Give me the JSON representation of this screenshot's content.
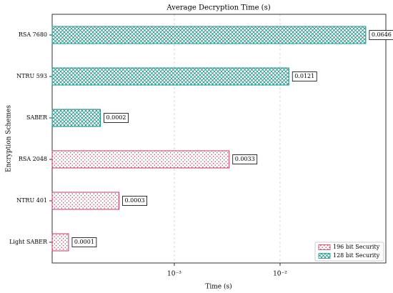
{
  "chart_data": {
    "type": "barh",
    "title": "Average Decryption Time (s)",
    "xlabel": "Time (s)",
    "ylabel": "Encryption Schemes",
    "categories": [
      "RSA 7680",
      "NTRU 593",
      "SABER",
      "RSA 2048",
      "NTRU 401",
      "Light SABER"
    ],
    "series": [
      {
        "name": "196 bit Security",
        "color": "#c2385a",
        "hatch": "dots",
        "values": [
          null,
          null,
          null,
          0.0033,
          0.0003,
          0.0001
        ]
      },
      {
        "name": "128 bit Security",
        "color": "#1f8f86",
        "hatch": "cross",
        "values": [
          0.0646,
          0.0121,
          0.0002,
          null,
          null,
          null
        ]
      }
    ],
    "xscale": "log",
    "xlim": [
      7e-05,
      0.1
    ],
    "xticks": [
      {
        "value": 0.001,
        "label": "10⁻³"
      },
      {
        "value": 0.01,
        "label": "10⁻²"
      }
    ],
    "grid": true,
    "legend": "lower right"
  }
}
